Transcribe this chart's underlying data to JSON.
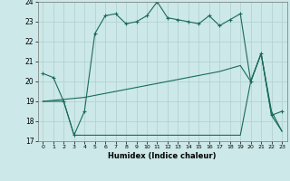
{
  "xlabel": "Humidex (Indice chaleur)",
  "bg_color": "#cce8e8",
  "grid_color": "#b0cfcf",
  "line_color": "#1a6b5a",
  "xlim": [
    -0.5,
    23.5
  ],
  "ylim": [
    17,
    24
  ],
  "yticks": [
    17,
    18,
    19,
    20,
    21,
    22,
    23,
    24
  ],
  "xticks": [
    0,
    1,
    2,
    3,
    4,
    5,
    6,
    7,
    8,
    9,
    10,
    11,
    12,
    13,
    14,
    15,
    16,
    17,
    18,
    19,
    20,
    21,
    22,
    23
  ],
  "line1_x": [
    0,
    1,
    2,
    3,
    4,
    5,
    6,
    7,
    8,
    9,
    10,
    11,
    12,
    13,
    14,
    15,
    16,
    17,
    18,
    19,
    20,
    21,
    22,
    23
  ],
  "line1_y": [
    20.4,
    20.2,
    19.0,
    17.3,
    18.5,
    22.4,
    23.3,
    23.4,
    22.9,
    23.0,
    23.3,
    24.0,
    23.2,
    23.1,
    23.0,
    22.9,
    23.3,
    22.8,
    23.1,
    23.4,
    20.0,
    21.4,
    18.3,
    18.5
  ],
  "line2_x": [
    0,
    1,
    2,
    3,
    4,
    5,
    6,
    7,
    8,
    9,
    10,
    11,
    12,
    13,
    14,
    15,
    16,
    17,
    18,
    19,
    20,
    21,
    22,
    23
  ],
  "line2_y": [
    19.0,
    19.05,
    19.1,
    19.15,
    19.2,
    19.3,
    19.4,
    19.5,
    19.6,
    19.7,
    19.8,
    19.9,
    20.0,
    20.1,
    20.2,
    20.3,
    20.4,
    20.5,
    20.65,
    20.8,
    20.0,
    21.4,
    18.5,
    17.5
  ],
  "line3_x": [
    0,
    1,
    2,
    3,
    4,
    5,
    6,
    7,
    8,
    9,
    10,
    11,
    12,
    13,
    14,
    15,
    16,
    17,
    18,
    19,
    20,
    21,
    22,
    23
  ],
  "line3_y": [
    19.0,
    19.0,
    19.0,
    17.3,
    17.3,
    17.3,
    17.3,
    17.3,
    17.3,
    17.3,
    17.3,
    17.3,
    17.3,
    17.3,
    17.3,
    17.3,
    17.3,
    17.3,
    17.3,
    17.3,
    20.0,
    21.4,
    18.3,
    17.5
  ]
}
